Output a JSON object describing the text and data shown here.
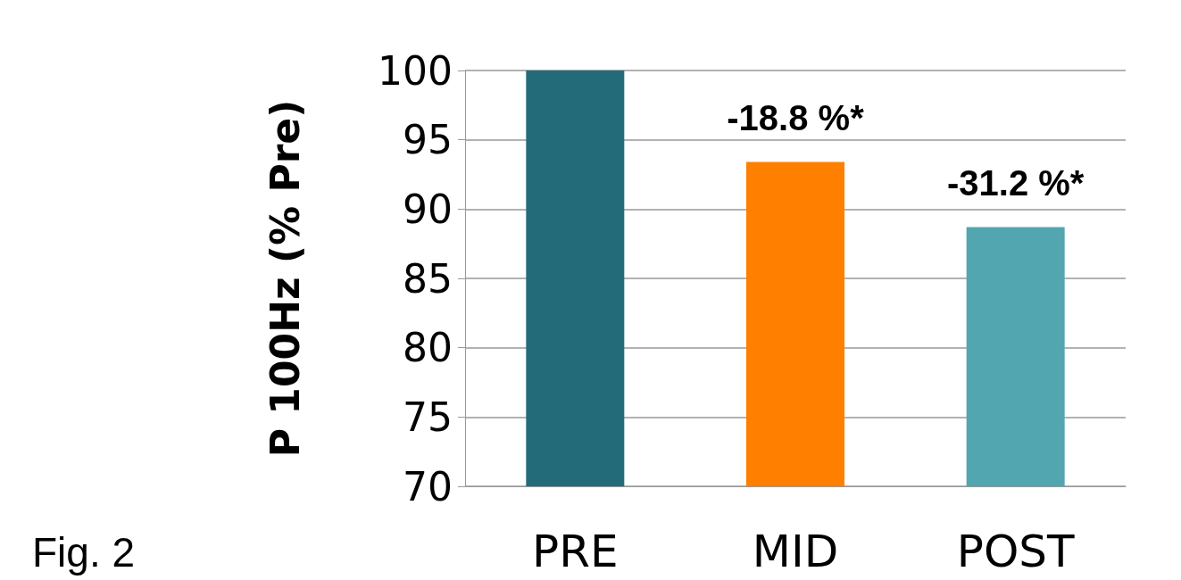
{
  "chart_data": {
    "type": "bar",
    "ylabel": "P 100Hz (% Pre)",
    "categories": [
      "PRE",
      "MID",
      "POST"
    ],
    "values": [
      100,
      93.4,
      88.7
    ],
    "colors": [
      "#246b7a",
      "#ff7f00",
      "#52a6b0"
    ],
    "ylim": [
      70,
      100
    ],
    "yticks": [
      70,
      75,
      80,
      85,
      90,
      95,
      100
    ],
    "grid": "y",
    "annotations": [
      "-18.8 %*",
      "-31.2 %*",
      "Fig. 2"
    ]
  }
}
